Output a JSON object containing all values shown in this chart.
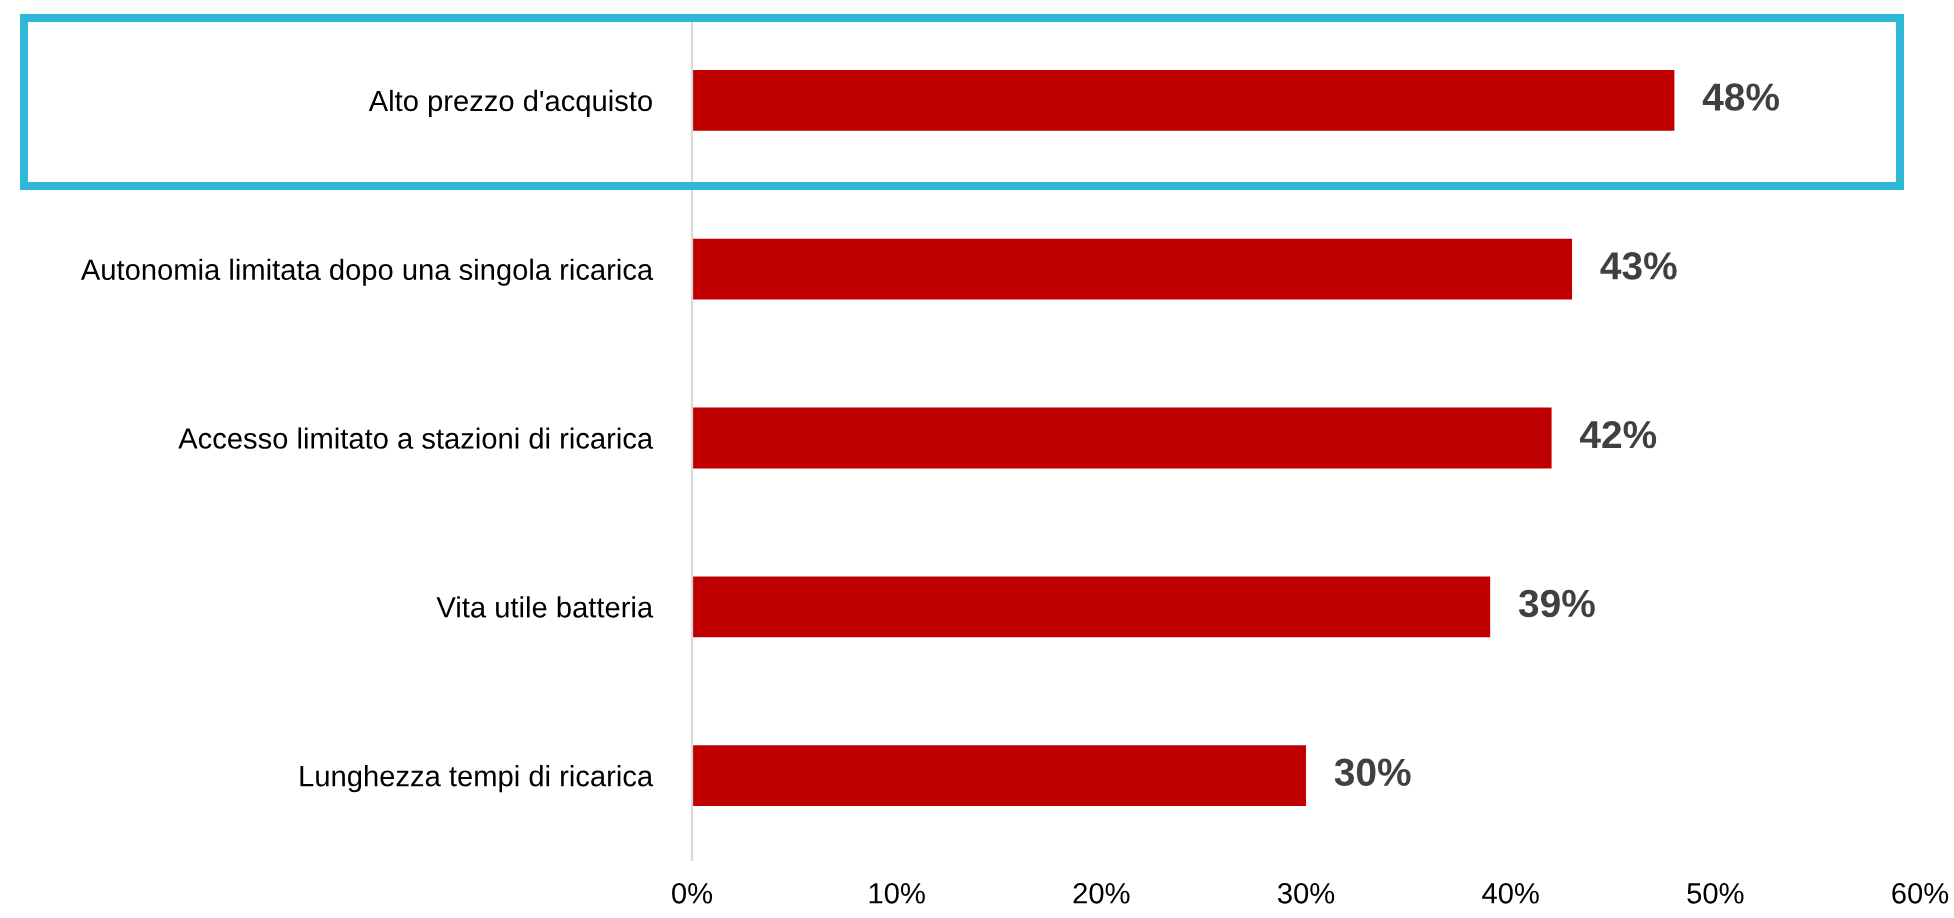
{
  "chart_data": {
    "type": "bar",
    "orientation": "horizontal",
    "categories": [
      "Alto prezzo d'acquisto",
      "Autonomia limitata dopo una singola ricarica",
      "Accesso limitato a stazioni di ricarica",
      "Vita utile batteria",
      "Lunghezza tempi di ricarica"
    ],
    "values": [
      48,
      43,
      42,
      39,
      30
    ],
    "color": "#c00000",
    "value_labels": [
      "48%",
      "43%",
      "42%",
      "39%",
      "30%"
    ],
    "xlim": [
      0,
      60
    ],
    "xticks": [
      {
        "value": 0,
        "label": "0%"
      },
      {
        "value": 10,
        "label": "10%"
      },
      {
        "value": 20,
        "label": "20%"
      },
      {
        "value": 30,
        "label": "30%"
      },
      {
        "value": 40,
        "label": "40%"
      },
      {
        "value": 50,
        "label": "50%"
      },
      {
        "value": 60,
        "label": "60%"
      }
    ],
    "grid": false,
    "legend": false
  }
}
